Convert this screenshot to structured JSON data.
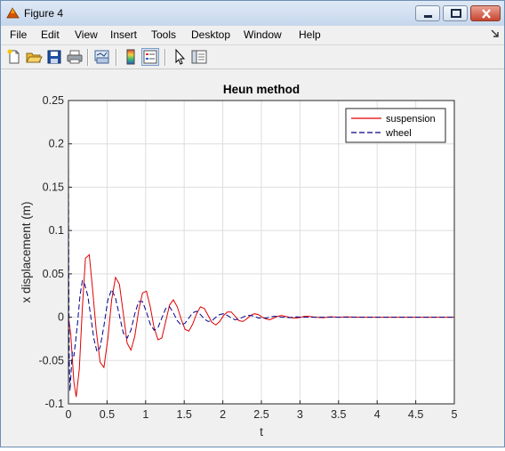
{
  "window": {
    "title": "Figure 4"
  },
  "menu": [
    "File",
    "Edit",
    "View",
    "Insert",
    "Tools",
    "Desktop",
    "Window",
    "Help"
  ],
  "toolbar": {
    "buttons": [
      "new-figure",
      "open-file",
      "save",
      "print",
      "link-plot",
      "insert-colorbar",
      "insert-legend",
      "edit-plot",
      "show-plot-tools"
    ]
  },
  "chart_data": {
    "type": "line",
    "title": "Heun method",
    "xlabel": "t",
    "ylabel": "x displacement (m)",
    "xlim": [
      0,
      5
    ],
    "ylim": [
      -0.1,
      0.25
    ],
    "xticks": [
      0,
      0.5,
      1,
      1.5,
      2,
      2.5,
      3,
      3.5,
      4,
      4.5,
      5
    ],
    "xtick_labels": [
      "0",
      "0.5",
      "1",
      "1.5",
      "2",
      "2.5",
      "3",
      "3.5",
      "4",
      "4.5",
      "5"
    ],
    "yticks": [
      -0.1,
      -0.05,
      0,
      0.05,
      0.1,
      0.15,
      0.2,
      0.25
    ],
    "ytick_labels": [
      "-0.1",
      "-0.05",
      "0",
      "0.05",
      "0.1",
      "0.15",
      "0.2",
      "0.25"
    ],
    "grid": true,
    "legend_position": "top-right",
    "series": [
      {
        "name": "suspension",
        "color": "#e00000",
        "style": "solid",
        "x": [
          0,
          0.03,
          0.07,
          0.1,
          0.14,
          0.18,
          0.22,
          0.27,
          0.31,
          0.36,
          0.41,
          0.46,
          0.51,
          0.56,
          0.61,
          0.66,
          0.71,
          0.76,
          0.81,
          0.86,
          0.91,
          0.96,
          1.01,
          1.06,
          1.11,
          1.16,
          1.21,
          1.26,
          1.31,
          1.36,
          1.41,
          1.46,
          1.51,
          1.56,
          1.61,
          1.66,
          1.71,
          1.76,
          1.81,
          1.86,
          1.91,
          1.96,
          2.01,
          2.06,
          2.11,
          2.16,
          2.21,
          2.26,
          2.31,
          2.36,
          2.41,
          2.46,
          2.51,
          2.56,
          2.61,
          2.66,
          2.71,
          2.76,
          2.81,
          2.86,
          2.91,
          2.96,
          3.01,
          3.06,
          3.11,
          3.2,
          3.3,
          3.4,
          3.5,
          3.6,
          3.8,
          4.0,
          4.2,
          4.5,
          5.0
        ],
        "y": [
          0,
          -0.02,
          -0.075,
          -0.092,
          -0.06,
          0.01,
          0.068,
          0.072,
          0.035,
          -0.015,
          -0.052,
          -0.058,
          -0.025,
          0.02,
          0.046,
          0.038,
          0.005,
          -0.03,
          -0.038,
          -0.022,
          0.008,
          0.028,
          0.03,
          0.012,
          -0.012,
          -0.026,
          -0.024,
          -0.005,
          0.014,
          0.02,
          0.012,
          -0.002,
          -0.014,
          -0.016,
          -0.008,
          0.004,
          0.012,
          0.01,
          0.002,
          -0.006,
          -0.009,
          -0.005,
          0.002,
          0.006,
          0.006,
          0.001,
          -0.004,
          -0.005,
          -0.002,
          0.002,
          0.004,
          0.003,
          0,
          -0.002,
          -0.003,
          -0.001,
          0.001,
          0.002,
          0.001,
          0,
          -0.001,
          -0.001,
          0,
          0.001,
          0.001,
          0,
          -0.0005,
          0.0005,
          0,
          0.0003,
          0,
          0,
          0,
          0,
          0
        ]
      },
      {
        "name": "wheel",
        "color": "#00008b",
        "style": "dashed",
        "x": [
          0,
          0.005,
          0.01,
          0.02,
          0.03,
          0.05,
          0.07,
          0.09,
          0.12,
          0.15,
          0.18,
          0.21,
          0.25,
          0.29,
          0.33,
          0.37,
          0.41,
          0.46,
          0.51,
          0.56,
          0.61,
          0.66,
          0.71,
          0.76,
          0.81,
          0.86,
          0.91,
          0.96,
          1.01,
          1.06,
          1.11,
          1.16,
          1.21,
          1.26,
          1.31,
          1.36,
          1.41,
          1.46,
          1.51,
          1.56,
          1.61,
          1.66,
          1.71,
          1.76,
          1.81,
          1.86,
          1.91,
          1.96,
          2.01,
          2.06,
          2.11,
          2.16,
          2.21,
          2.26,
          2.31,
          2.36,
          2.41,
          2.46,
          2.51,
          2.56,
          2.61,
          2.66,
          2.71,
          2.76,
          2.81,
          2.86,
          2.91,
          2.96,
          3.01,
          3.06,
          3.2,
          3.5,
          4.0,
          5.0
        ],
        "y": [
          0.18,
          0.05,
          -0.05,
          -0.085,
          -0.07,
          -0.04,
          -0.045,
          -0.03,
          -0.005,
          0.025,
          0.042,
          0.038,
          0.025,
          0,
          -0.025,
          -0.04,
          -0.035,
          -0.01,
          0.02,
          0.032,
          0.022,
          0.002,
          -0.018,
          -0.024,
          -0.015,
          0.004,
          0.018,
          0.018,
          0.006,
          -0.008,
          -0.015,
          -0.012,
          -0.001,
          0.01,
          0.012,
          0.005,
          -0.004,
          -0.009,
          -0.007,
          -0.001,
          0.005,
          0.007,
          0.003,
          -0.002,
          -0.005,
          -0.004,
          0,
          0.003,
          0.004,
          0.002,
          -0.001,
          -0.003,
          -0.002,
          0,
          0.002,
          0.002,
          0.001,
          -0.001,
          -0.001,
          -0.001,
          0,
          0.001,
          0.001,
          0,
          0,
          -0.0005,
          0,
          0.0005,
          0,
          0,
          0,
          0,
          0,
          0
        ]
      }
    ]
  }
}
